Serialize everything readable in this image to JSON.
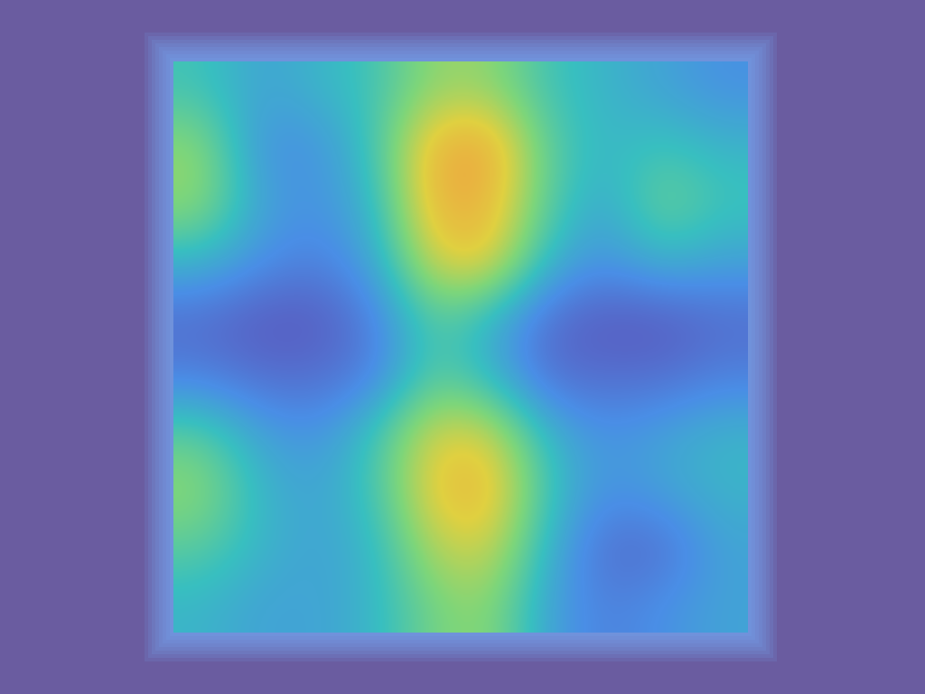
{
  "chart_data": {
    "type": "heatmap",
    "tick_labels": false,
    "cells": [
      [
        0.45,
        0.35,
        0.4,
        0.45,
        0.6,
        0.6,
        0.45,
        0.4,
        0.35,
        0.3
      ],
      [
        0.6,
        0.3,
        0.3,
        0.45,
        0.8,
        0.85,
        0.5,
        0.4,
        0.45,
        0.4
      ],
      [
        0.6,
        0.35,
        0.3,
        0.4,
        0.8,
        0.8,
        0.5,
        0.35,
        0.55,
        0.45
      ],
      [
        0.4,
        0.3,
        0.25,
        0.35,
        0.7,
        0.75,
        0.4,
        0.3,
        0.4,
        0.35
      ],
      [
        0.2,
        0.15,
        0.15,
        0.25,
        0.5,
        0.4,
        0.2,
        0.15,
        0.15,
        0.2
      ],
      [
        0.25,
        0.2,
        0.2,
        0.25,
        0.5,
        0.4,
        0.2,
        0.2,
        0.2,
        0.25
      ],
      [
        0.5,
        0.35,
        0.3,
        0.45,
        0.7,
        0.7,
        0.4,
        0.3,
        0.35,
        0.4
      ],
      [
        0.6,
        0.4,
        0.35,
        0.45,
        0.75,
        0.8,
        0.45,
        0.3,
        0.35,
        0.4
      ],
      [
        0.5,
        0.4,
        0.35,
        0.4,
        0.65,
        0.7,
        0.4,
        0.2,
        0.2,
        0.35
      ],
      [
        0.4,
        0.35,
        0.35,
        0.4,
        0.55,
        0.6,
        0.35,
        0.25,
        0.3,
        0.35
      ]
    ]
  }
}
